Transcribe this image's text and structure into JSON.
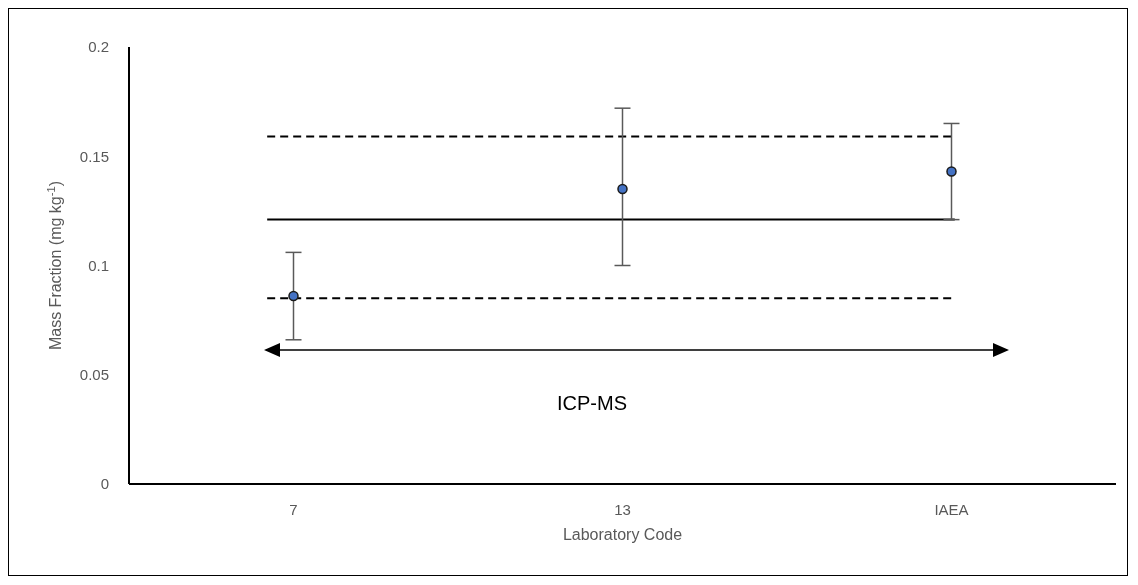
{
  "chart_data": {
    "type": "scatter",
    "xlabel": "Laboratory Code",
    "ylabel": "Mass Fraction (mg kg$^{-1}$)",
    "categories": [
      "7",
      "13",
      "IAEA"
    ],
    "series": [
      {
        "color": "#4472c4",
        "values": [
          0.086,
          0.135,
          0.143
        ],
        "errors": [
          [
            0.066,
            0.106
          ],
          [
            0.1,
            0.172
          ],
          [
            0.121,
            0.165
          ]
        ]
      }
    ],
    "ylim": [
      0,
      0.2
    ],
    "yticks": [
      0,
      0.05,
      0.1,
      0.15,
      0.2
    ],
    "marker": "circle",
    "ref_lines": [
      {
        "axis": "y",
        "value": 0.121,
        "color": "#000000",
        "line_style": "solid"
      },
      {
        "axis": "y",
        "value": 0.159,
        "color": "#000000",
        "line_style": "dashed"
      },
      {
        "axis": "y",
        "value": 0.085,
        "color": "#000000",
        "line_style": "dashed"
      }
    ],
    "annotations": [
      "ICP-MS"
    ]
  }
}
